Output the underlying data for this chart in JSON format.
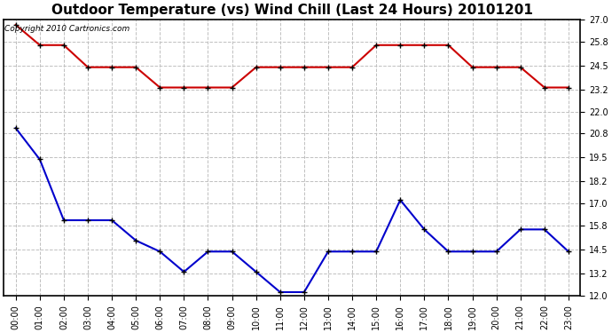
{
  "title": "Outdoor Temperature (vs) Wind Chill (Last 24 Hours) 20101201",
  "copyright_text": "Copyright 2010 Cartronics.com",
  "x_labels": [
    "00:00",
    "01:00",
    "02:00",
    "03:00",
    "04:00",
    "05:00",
    "06:00",
    "07:00",
    "08:00",
    "09:00",
    "10:00",
    "11:00",
    "12:00",
    "13:00",
    "14:00",
    "15:00",
    "16:00",
    "17:00",
    "18:00",
    "19:00",
    "20:00",
    "21:00",
    "22:00",
    "23:00"
  ],
  "red_data": [
    26.7,
    25.6,
    25.6,
    24.4,
    24.4,
    24.4,
    23.3,
    23.3,
    23.3,
    23.3,
    24.4,
    24.4,
    24.4,
    24.4,
    24.4,
    25.6,
    25.6,
    25.6,
    25.6,
    24.4,
    24.4,
    24.4,
    23.3,
    23.3
  ],
  "blue_data": [
    21.1,
    19.4,
    16.1,
    16.1,
    16.1,
    15.0,
    14.4,
    13.3,
    14.4,
    14.4,
    13.3,
    12.2,
    12.2,
    14.4,
    14.4,
    14.4,
    17.2,
    15.6,
    14.4,
    14.4,
    14.4,
    15.6,
    15.6,
    14.4
  ],
  "red_color": "#cc0000",
  "blue_color": "#0000cc",
  "bg_color": "#ffffff",
  "plot_bg_color": "#ffffff",
  "grid_color": "#c0c0c0",
  "ylim": [
    12.0,
    27.0
  ],
  "yticks": [
    12.0,
    13.2,
    14.5,
    15.8,
    17.0,
    18.2,
    19.5,
    20.8,
    22.0,
    23.2,
    24.5,
    25.8,
    27.0
  ],
  "marker": "+",
  "marker_color": "#000000",
  "marker_size": 5,
  "line_width": 1.5,
  "title_fontsize": 11,
  "tick_fontsize": 7,
  "copyright_fontsize": 6.5
}
